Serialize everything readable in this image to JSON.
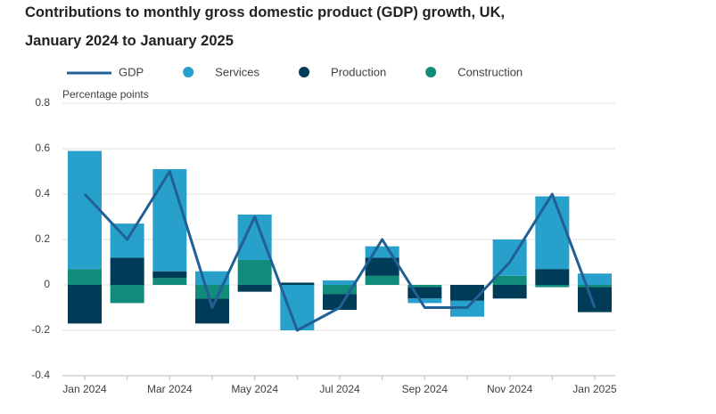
{
  "chart_data": {
    "type": "bar",
    "title": "Contributions to monthly gross domestic product (GDP) growth, UK,",
    "subtitle": "January 2024 to January 2025",
    "y_label": "Percentage points",
    "categories": [
      "Jan 2024",
      null,
      "Mar 2024",
      null,
      "May 2024",
      null,
      "Jul 2024",
      null,
      "Sep 2024",
      null,
      "Nov 2024",
      null,
      "Jan 2025"
    ],
    "series": [
      {
        "name": "GDP",
        "type": "line",
        "color": "#206095",
        "values": [
          0.4,
          0.2,
          0.5,
          -0.1,
          0.3,
          -0.2,
          -0.1,
          0.2,
          -0.1,
          -0.1,
          0.1,
          0.4,
          -0.1
        ]
      },
      {
        "name": "Services",
        "type": "bar",
        "color": "#27a0cc",
        "values": [
          0.52,
          0.15,
          0.45,
          0.06,
          0.2,
          -0.2,
          0.02,
          0.05,
          -0.02,
          -0.07,
          0.16,
          0.32,
          0.05
        ]
      },
      {
        "name": "Production",
        "type": "bar",
        "color": "#003c57",
        "values": [
          -0.17,
          0.12,
          0.03,
          -0.11,
          -0.03,
          0.01,
          -0.07,
          0.08,
          -0.05,
          -0.07,
          -0.06,
          0.07,
          -0.11
        ]
      },
      {
        "name": "Construction",
        "type": "bar",
        "color": "#118c7b",
        "values": [
          0.07,
          -0.08,
          0.03,
          -0.06,
          0.11,
          0,
          -0.04,
          0.04,
          -0.01,
          0,
          0.04,
          -0.01,
          -0.01
        ]
      }
    ],
    "ylim": [
      -0.4,
      0.8
    ],
    "yticks": [
      -0.4,
      -0.2,
      0,
      0.2,
      0.4,
      0.6,
      0.8
    ],
    "grid": true
  }
}
